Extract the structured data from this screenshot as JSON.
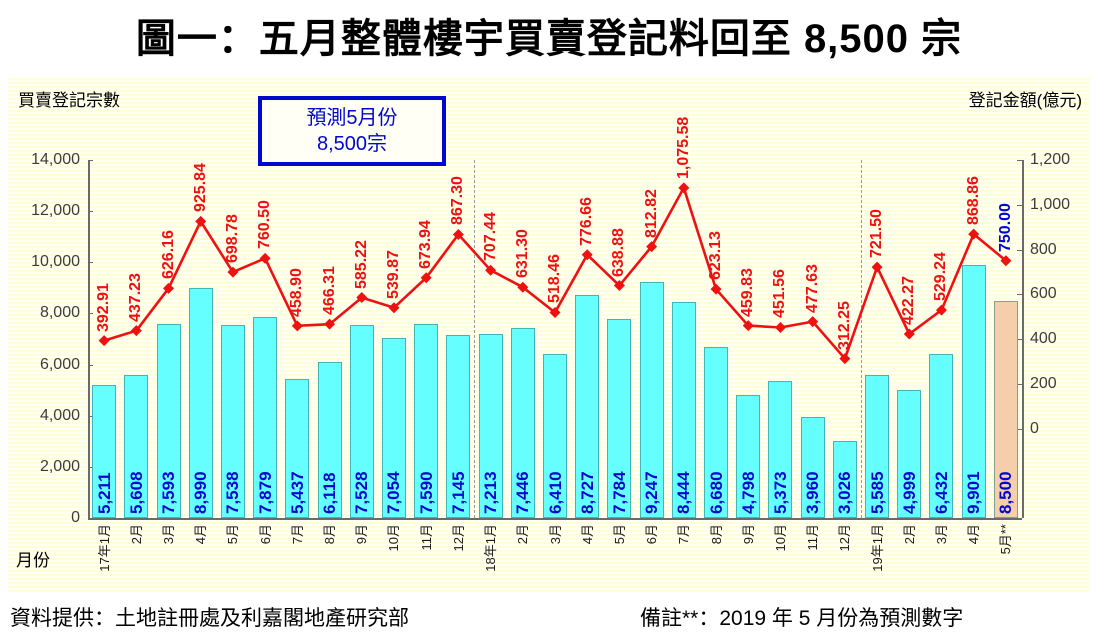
{
  "title": "圖一：五月整體樓宇買賣登記料回至 8,500 宗",
  "axes": {
    "left_title": "買賣登記宗數",
    "right_title": "登記金額(億元)",
    "x_title": "月份",
    "left_tick_labels": [
      "14,000",
      "12,000",
      "10,000",
      "8,000",
      "6,000",
      "4,000",
      "2,000",
      "0"
    ],
    "right_tick_labels": [
      "1,200",
      "1,000",
      "800",
      "600",
      "400",
      "200",
      "0"
    ]
  },
  "annotation_box": {
    "line1": "預測5月份",
    "line2": "8,500宗"
  },
  "footer": {
    "source": "資料提供：土地註冊處及利嘉閣地產研究部",
    "note": "備註**：2019 年 5 月份為預測數字"
  },
  "chart_data": {
    "type": "combo-bar-line",
    "categories": [
      "17年1月",
      "2月",
      "3月",
      "4月",
      "5月",
      "6月",
      "7月",
      "8月",
      "9月",
      "10月",
      "11月",
      "12月",
      "18年1月",
      "2月",
      "3月",
      "4月",
      "5月",
      "6月",
      "7月",
      "8月",
      "9月",
      "10月",
      "11月",
      "12月",
      "19年1月",
      "2月",
      "3月",
      "4月",
      "5月**"
    ],
    "series": [
      {
        "name": "買賣登記宗數",
        "type": "bar",
        "axis": "left",
        "values": [
          5211,
          5608,
          7593,
          8990,
          7538,
          7879,
          5437,
          6118,
          7528,
          7054,
          7590,
          7145,
          7213,
          7446,
          6410,
          8727,
          7784,
          9247,
          8444,
          6680,
          4798,
          5373,
          3960,
          3026,
          5585,
          4999,
          6432,
          9901,
          8500
        ]
      },
      {
        "name": "登記金額(億元)",
        "type": "line",
        "axis": "right",
        "values": [
          392.91,
          437.23,
          626.16,
          925.84,
          698.78,
          760.5,
          458.9,
          466.31,
          585.22,
          539.87,
          673.94,
          867.3,
          707.44,
          631.3,
          518.46,
          776.66,
          638.88,
          812.82,
          1075.58,
          623.13,
          459.83,
          451.56,
          477.63,
          312.25,
          721.5,
          422.27,
          529.24,
          868.86,
          750.0
        ]
      }
    ],
    "left_axis_range": [
      0,
      14000
    ],
    "right_axis_range": [
      -400,
      1200
    ],
    "forecast_index": 28,
    "separator_after_indices": [
      11,
      23
    ],
    "colors": {
      "bar": "#66FFFF",
      "bar_forecast": "#F6CEAC",
      "line": "#EE1111",
      "bar_label": "#0008CC",
      "line_label": "#EE1111",
      "forecast_line_label": "#0008CC",
      "annotation": "#0008CC",
      "background_stripe": "#FFFFDA"
    }
  }
}
